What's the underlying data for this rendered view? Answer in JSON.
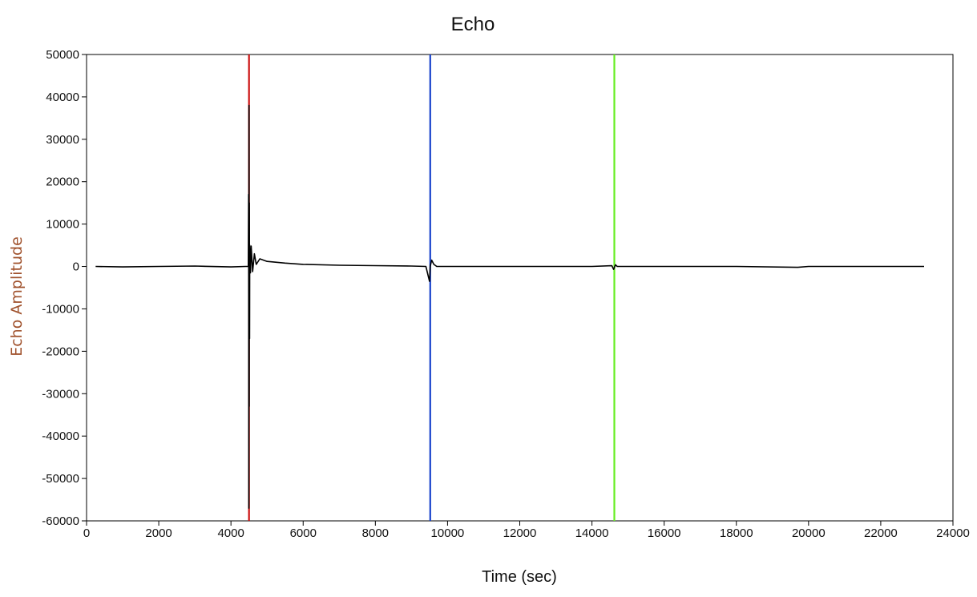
{
  "chart_data": {
    "type": "line",
    "title": "Echo",
    "xlabel": "Time (sec)",
    "ylabel": "Echo Amplitude",
    "xlim": [
      0,
      24000
    ],
    "ylim": [
      -60000,
      50000
    ],
    "x_ticks": [
      "0",
      "2000",
      "4000",
      "6000",
      "8000",
      "10000",
      "12000",
      "14000",
      "16000",
      "18000",
      "20000",
      "22000",
      "24000"
    ],
    "y_ticks": [
      "50000",
      "40000",
      "30000",
      "20000",
      "10000",
      "0",
      "-10000",
      "-20000",
      "-30000",
      "-40000",
      "-50000",
      "-60000"
    ],
    "grid": false,
    "series": [
      {
        "color": "#000000",
        "x": [
          250,
          1000,
          2000,
          3000,
          4000,
          4400,
          4480,
          4490,
          4495,
          4500,
          4505,
          4510,
          4515,
          4520,
          4540,
          4560,
          4600,
          4650,
          4700,
          4800,
          5000,
          5500,
          6000,
          7000,
          8000,
          9000,
          9400,
          9500,
          9520,
          9560,
          9620,
          9700,
          9800,
          10000,
          12000,
          14000,
          14550,
          14600,
          14650,
          14700,
          16000,
          18000,
          19700,
          20000,
          22000,
          23200
        ],
        "y": [
          0,
          -100,
          0,
          100,
          -100,
          0,
          0,
          17000,
          -57000,
          38000,
          -33000,
          15000,
          -17000,
          5000,
          -1500,
          4800,
          -1200,
          3000,
          500,
          1800,
          1200,
          800,
          500,
          300,
          200,
          100,
          0,
          -3500,
          0,
          1500,
          500,
          0,
          0,
          0,
          0,
          0,
          200,
          -700,
          400,
          0,
          0,
          0,
          -200,
          0,
          0,
          0
        ]
      }
    ],
    "markers": [
      {
        "x": 4500,
        "color": "#cc1111"
      },
      {
        "x": 9520,
        "color": "#1a44cc"
      },
      {
        "x": 14620,
        "color": "#66ee22"
      }
    ]
  }
}
